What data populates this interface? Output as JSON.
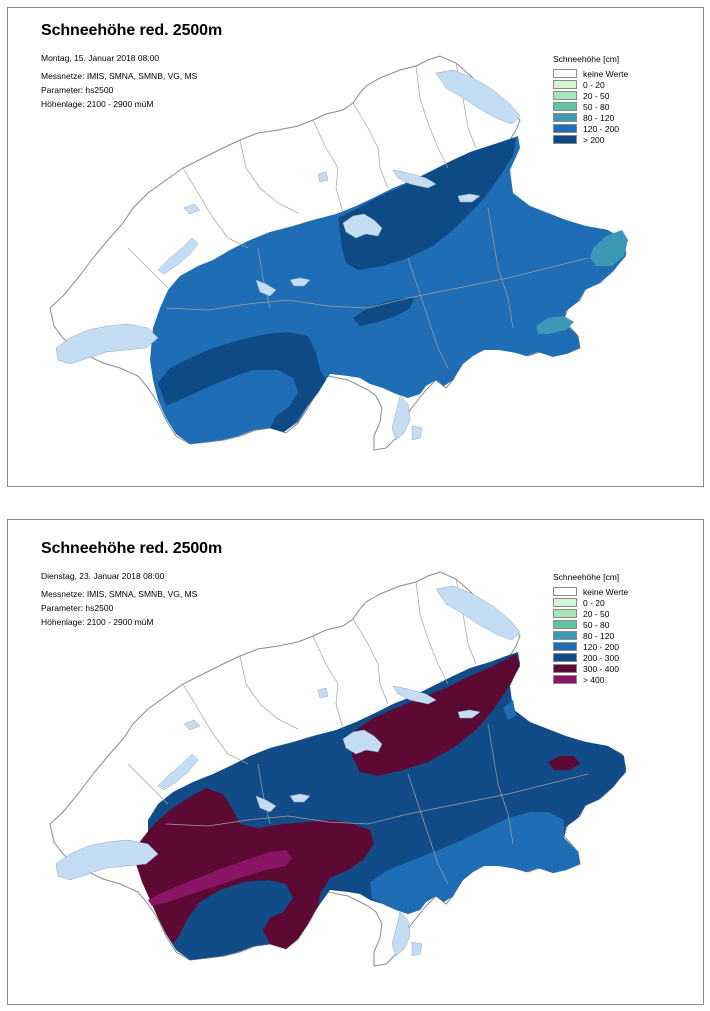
{
  "panels": [
    {
      "title": "Schneehöhe red. 2500m",
      "date": "Montag, 15. Januar 2018 08:00",
      "networks": "Messnetze: IMIS, SMNA, SMNB, VG, MS",
      "parameter": "Parameter: hs2500",
      "elevation": "Höhenlage: 2100 - 2900 müM",
      "legend_title": "Schneehöhe [cm]",
      "legend": [
        {
          "label": "keine Werte",
          "color": "#ffffff"
        },
        {
          "label": "0 - 20",
          "color": "#d6f5d6"
        },
        {
          "label": "20 - 50",
          "color": "#a8e6b8"
        },
        {
          "label": "50 - 80",
          "color": "#62c2a2"
        },
        {
          "label": "80 - 120",
          "color": "#3c98b4"
        },
        {
          "label": "120 - 200",
          "color": "#1e6db5"
        },
        {
          "label": "> 200",
          "color": "#0e4a86"
        }
      ]
    },
    {
      "title": "Schneehöhe red. 2500m",
      "date": "Dienstag, 23. Januar 2018 08:00",
      "networks": "Messnetze: IMIS, SMNA, SMNB, VG, MS",
      "parameter": "Parameter: hs2500",
      "elevation": "Höhenlage: 2100 - 2900 müM",
      "legend_title": "Schneehöhe [cm]",
      "legend": [
        {
          "label": "keine Werte",
          "color": "#ffffff"
        },
        {
          "label": "0 - 20",
          "color": "#d6f5d6"
        },
        {
          "label": "20 - 50",
          "color": "#a8e6b8"
        },
        {
          "label": "50 - 80",
          "color": "#62c2a2"
        },
        {
          "label": "80 - 120",
          "color": "#3c98b4"
        },
        {
          "label": "120 - 200",
          "color": "#1e6db5"
        },
        {
          "label": "200 - 300",
          "color": "#114c88"
        },
        {
          "label": "300 - 400",
          "color": "#5c0a33"
        },
        {
          "label": "> 400",
          "color": "#8a1466"
        }
      ]
    }
  ],
  "colors": {
    "lake": "#c5ddf2",
    "border": "#9a9a9a",
    "no_data": "#ffffff"
  }
}
